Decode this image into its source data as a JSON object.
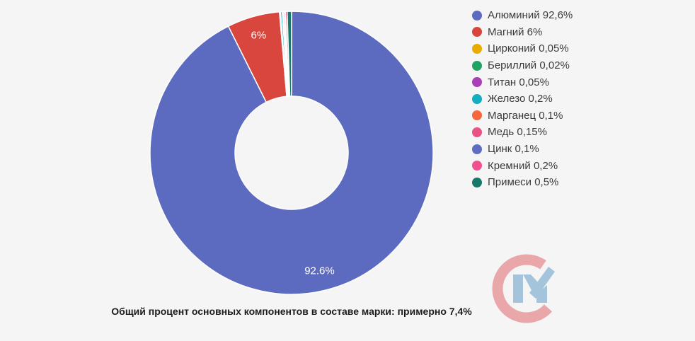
{
  "page": {
    "background": "#f5f5f5"
  },
  "chart_data": {
    "type": "pie",
    "subtype": "donut",
    "unit": "%",
    "legend_position": "right",
    "start_angle_deg": 0,
    "direction": "clockwise",
    "series": [
      {
        "key": "aluminum",
        "name": "Алюминий",
        "value": 92.6,
        "label": "Алюминий 92,6%",
        "chart_label": "92.6%",
        "color": "#5c6bc0"
      },
      {
        "key": "magnesium",
        "name": "Магний",
        "value": 6,
        "label": "Магний 6%",
        "chart_label": "6%",
        "color": "#d8463e"
      },
      {
        "key": "zirconium",
        "name": "Цирконий",
        "value": 0.05,
        "label": "Цирконий 0,05%",
        "chart_label": "",
        "color": "#eaab00"
      },
      {
        "key": "beryllium",
        "name": "Бериллий",
        "value": 0.02,
        "label": "Бериллий 0,02%",
        "chart_label": "",
        "color": "#22a366"
      },
      {
        "key": "titanium",
        "name": "Титан",
        "value": 0.05,
        "label": "Титан 0,05%",
        "chart_label": "",
        "color": "#aa3fb8"
      },
      {
        "key": "iron",
        "name": "Железо",
        "value": 0.2,
        "label": "Железо 0,2%",
        "chart_label": "",
        "color": "#15aec0"
      },
      {
        "key": "manganese",
        "name": "Марганец",
        "value": 0.1,
        "label": "Марганец 0,1%",
        "chart_label": "",
        "color": "#f4673f"
      },
      {
        "key": "copper",
        "name": "Медь",
        "value": 0.15,
        "label": "Медь 0,15%",
        "chart_label": "",
        "color": "#e85286"
      },
      {
        "key": "zinc",
        "name": "Цинк",
        "value": 0.1,
        "label": "Цинк 0,1%",
        "chart_label": "",
        "color": "#5f6ec3"
      },
      {
        "key": "silicon",
        "name": "Кремний",
        "value": 0.2,
        "label": "Кремний 0,2%",
        "chart_label": "",
        "color": "#f0508f"
      },
      {
        "key": "impurities",
        "name": "Примеси",
        "value": 0.5,
        "label": "Примеси 0,5%",
        "chart_label": "",
        "color": "#16796c"
      }
    ]
  },
  "caption": {
    "text": "Общий процент основных компонентов в составе марки: примерно 7,4%"
  },
  "logo": {
    "name": "CM watermark",
    "c_color": "#e9a7aa",
    "m_color": "#a4c4db"
  }
}
